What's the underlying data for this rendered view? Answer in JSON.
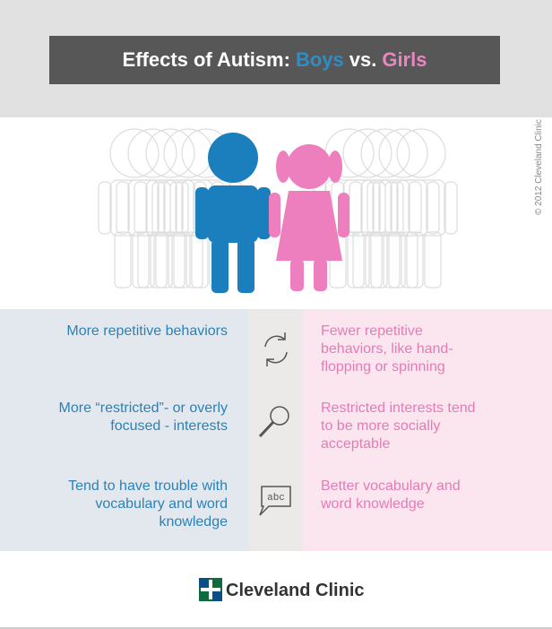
{
  "header": {
    "title_prefix": "Effects of Autism:",
    "boys": "Boys",
    "vs": "vs.",
    "girls": "Girls"
  },
  "copyright": "© 2012 Cleveland Clinic",
  "rows": [
    {
      "boys": "More repetitive behaviors",
      "girls": "Fewer repetitive behaviors, like hand-flopping or spinning"
    },
    {
      "boys": "More “restricted”- or overly focused - interests",
      "girls": "Restricted interests tend to be more socially acceptable"
    },
    {
      "boys": "Tend to have trouble with vocabulary and word knowledge",
      "girls": "Better vocabulary and word knowledge"
    }
  ],
  "icon_text": "abc",
  "footer": {
    "brand": "Cleveland Clinic"
  }
}
